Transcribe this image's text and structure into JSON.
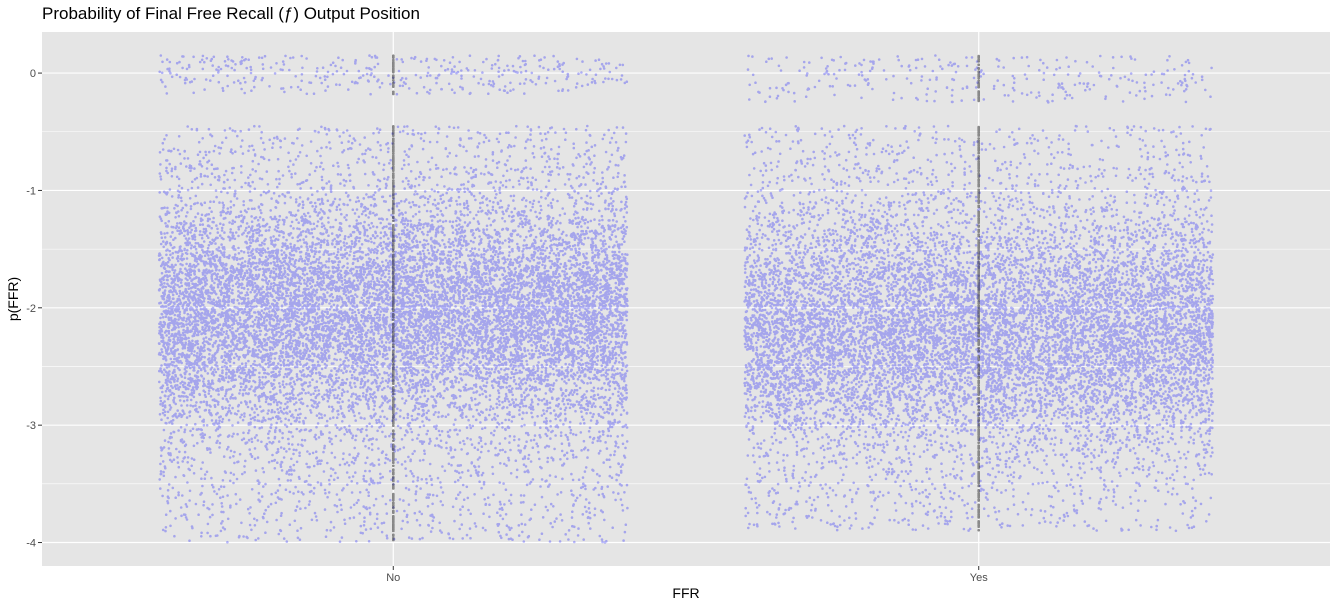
{
  "chart_data": {
    "type": "scatter",
    "title": "Probability of Final Free Recall (ƒ) Output Position",
    "xlabel": "FFR",
    "ylabel": "p(FFR)",
    "categories": [
      "No",
      "Yes"
    ],
    "ylim": [
      -4.2,
      0.35
    ],
    "yticks": [
      -4,
      -3,
      -2,
      -1,
      0
    ],
    "grid": true,
    "legend": "none",
    "colors": {
      "panel": "#e5e5e5",
      "grid": "#ffffff",
      "points": "#0000ff",
      "center_points": "#000000"
    },
    "series": [
      {
        "category": "No",
        "jitter_width": 0.4,
        "clusters": [
          {
            "y_min": -0.18,
            "y_max": 0.15,
            "count": 380
          },
          {
            "y_min": -4.0,
            "y_max": -0.45,
            "count": 14000,
            "dense_center": -2.05
          }
        ]
      },
      {
        "category": "Yes",
        "jitter_width": 0.4,
        "clusters": [
          {
            "y_min": -0.25,
            "y_max": 0.15,
            "count": 300
          },
          {
            "y_min": -3.9,
            "y_max": -0.45,
            "count": 12000,
            "dense_center": -2.2
          }
        ]
      }
    ]
  }
}
